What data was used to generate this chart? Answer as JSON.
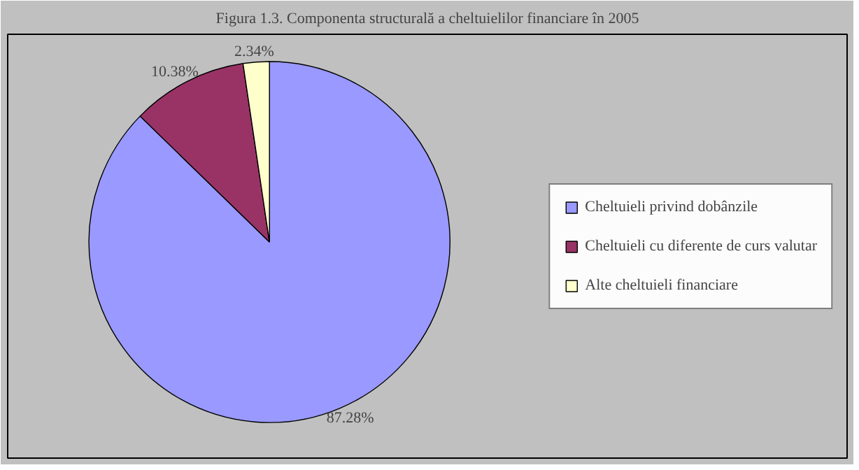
{
  "chart_data": {
    "type": "pie",
    "title": "Figura 1.3. Componenta structurală a cheltuielilor financiare în 2005",
    "categories": [
      "Cheltuieli privind dobânzile",
      "Cheltuieli cu diferente de curs valutar",
      "Alte cheltuieli financiare"
    ],
    "values": [
      87.28,
      10.38,
      2.34
    ],
    "colors": [
      "#9999ff",
      "#993366",
      "#ffffcc"
    ],
    "value_labels": [
      "87.28%",
      "10.38%",
      "2.34%"
    ],
    "legend": "right"
  }
}
